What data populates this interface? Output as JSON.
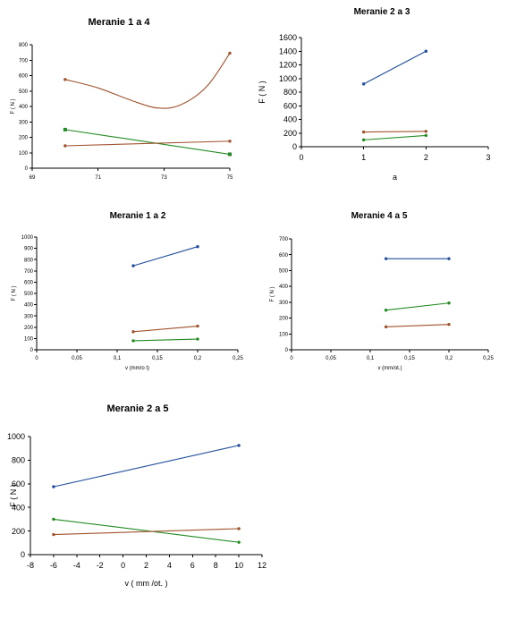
{
  "chart_data": [
    {
      "type": "line",
      "title": "Meranie 1 a 4",
      "xlabel": "",
      "ylabel": "F ( N )",
      "xlim": [
        69,
        75
      ],
      "ylim": [
        0,
        800
      ],
      "xticks": [
        69,
        71,
        73,
        75
      ],
      "yticks": [
        0,
        100,
        200,
        300,
        400,
        500,
        600,
        700,
        800
      ],
      "series": [
        {
          "color": "#a0522d",
          "smooth": true,
          "marker": "dot",
          "x": [
            70,
            71,
            72,
            72.8,
            73.5,
            74.3,
            75
          ],
          "y": [
            575,
            520,
            440,
            390,
            410,
            530,
            745
          ]
        },
        {
          "color": "#228b22",
          "smooth": false,
          "marker": "square",
          "x": [
            70,
            75
          ],
          "y": [
            250,
            90
          ]
        },
        {
          "color": "#a0522d",
          "smooth": false,
          "marker": "dot",
          "x": [
            70,
            75
          ],
          "y": [
            145,
            175
          ]
        }
      ]
    },
    {
      "type": "line",
      "title": "Meranie 2 a 3",
      "xlabel": "a",
      "ylabel": "F ( N )",
      "xlim": [
        0,
        3
      ],
      "ylim": [
        0,
        1600
      ],
      "xticks": [
        0,
        1,
        2,
        3
      ],
      "yticks": [
        0,
        200,
        400,
        600,
        800,
        1000,
        1200,
        1400,
        1600
      ],
      "series": [
        {
          "color": "#1f4e9c",
          "smooth": false,
          "marker": "dot",
          "x": [
            1,
            2
          ],
          "y": [
            920,
            1400
          ]
        },
        {
          "color": "#a0522d",
          "smooth": false,
          "marker": "dot",
          "x": [
            1,
            2
          ],
          "y": [
            215,
            225
          ]
        },
        {
          "color": "#228b22",
          "smooth": false,
          "marker": "dot",
          "x": [
            1,
            2
          ],
          "y": [
            100,
            165
          ]
        }
      ]
    },
    {
      "type": "line",
      "title": "Meranie 1 a 2",
      "xlabel": "v (mm/o t)",
      "ylabel": "F ( N )",
      "xlim": [
        0,
        0.25
      ],
      "ylim": [
        0,
        1000
      ],
      "xticks": [
        "0",
        "0,05",
        "0,1",
        "0,15",
        "0,2",
        "0,25"
      ],
      "xtick_values": [
        0,
        0.05,
        0.1,
        0.15,
        0.2,
        0.25
      ],
      "yticks": [
        0,
        100,
        200,
        300,
        400,
        500,
        600,
        700,
        800,
        900,
        1000
      ],
      "series": [
        {
          "color": "#1f4e9c",
          "smooth": false,
          "marker": "dot",
          "x": [
            0.12,
            0.2
          ],
          "y": [
            745,
            915
          ]
        },
        {
          "color": "#a0522d",
          "smooth": false,
          "marker": "dot",
          "x": [
            0.12,
            0.2
          ],
          "y": [
            160,
            210
          ]
        },
        {
          "color": "#228b22",
          "smooth": false,
          "marker": "dot",
          "x": [
            0.12,
            0.2
          ],
          "y": [
            80,
            95
          ]
        }
      ]
    },
    {
      "type": "line",
      "title": "Meranie 4 a 5",
      "xlabel": "v (mm/ot.)",
      "ylabel": "F ( N )",
      "xlim": [
        0,
        0.25
      ],
      "ylim": [
        0,
        700
      ],
      "xticks": [
        "0",
        "0,05",
        "0,1",
        "0,15",
        "0,2",
        "0,25"
      ],
      "xtick_values": [
        0,
        0.05,
        0.1,
        0.15,
        0.2,
        0.25
      ],
      "yticks": [
        0,
        100,
        200,
        300,
        400,
        500,
        600,
        700
      ],
      "series": [
        {
          "color": "#1f4e9c",
          "smooth": false,
          "marker": "dot",
          "x": [
            0.12,
            0.2
          ],
          "y": [
            575,
            575
          ]
        },
        {
          "color": "#228b22",
          "smooth": false,
          "marker": "dot",
          "x": [
            0.12,
            0.2
          ],
          "y": [
            250,
            295
          ]
        },
        {
          "color": "#a0522d",
          "smooth": false,
          "marker": "dot",
          "x": [
            0.12,
            0.2
          ],
          "y": [
            145,
            160
          ]
        }
      ]
    },
    {
      "type": "line",
      "title": "Meranie 2 a 5",
      "xlabel": "v ( mm /ot. )",
      "ylabel": "F ( N )",
      "xlim": [
        -8,
        12
      ],
      "ylim": [
        0,
        1000
      ],
      "xticks": [
        -8,
        -6,
        -4,
        -2,
        0,
        2,
        4,
        6,
        8,
        10,
        12
      ],
      "yticks": [
        0,
        200,
        400,
        600,
        800,
        1000
      ],
      "series": [
        {
          "color": "#1f4e9c",
          "smooth": false,
          "marker": "dot",
          "x": [
            -6,
            10
          ],
          "y": [
            575,
            925
          ]
        },
        {
          "color": "#228b22",
          "smooth": false,
          "marker": "dot",
          "x": [
            -6,
            10
          ],
          "y": [
            300,
            105
          ]
        },
        {
          "color": "#a0522d",
          "smooth": false,
          "marker": "dot",
          "x": [
            -6,
            10
          ],
          "y": [
            170,
            220
          ]
        }
      ]
    }
  ]
}
